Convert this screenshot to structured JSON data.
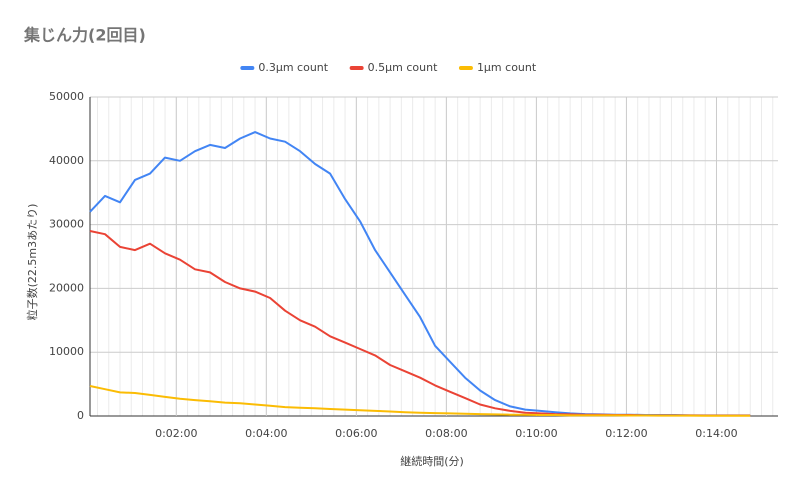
{
  "chart_data": {
    "type": "line",
    "title": "集じん力(2回目)",
    "x_label": "継続時間(分)",
    "y_label": "粒子数(22.5m3あたり)",
    "x": [
      5,
      25,
      45,
      65,
      85,
      105,
      125,
      145,
      165,
      185,
      205,
      225,
      245,
      265,
      285,
      305,
      325,
      345,
      365,
      385,
      405,
      425,
      445,
      465,
      485,
      505,
      525,
      545,
      565,
      585,
      605,
      625,
      645,
      665,
      685,
      705,
      725,
      745,
      765,
      785,
      805,
      825,
      845,
      865,
      885
    ],
    "series": [
      {
        "name": "0.3μm count",
        "color": "#4285f4",
        "values": [
          32000,
          34500,
          33500,
          37000,
          38000,
          40500,
          40000,
          41500,
          42500,
          42000,
          43500,
          44500,
          43500,
          43000,
          41500,
          39500,
          38000,
          34000,
          30500,
          26000,
          22500,
          19000,
          15500,
          11000,
          8500,
          6000,
          4000,
          2500,
          1500,
          1000,
          800,
          600,
          400,
          300,
          250,
          200,
          200,
          150,
          150,
          150,
          100,
          100,
          100,
          100,
          100
        ]
      },
      {
        "name": "0.5μm count",
        "color": "#ea4335",
        "values": [
          29000,
          28500,
          26500,
          26000,
          27000,
          25500,
          24500,
          23000,
          22500,
          21000,
          20000,
          19500,
          18500,
          16500,
          15000,
          14000,
          12500,
          11500,
          10500,
          9500,
          8000,
          7000,
          6000,
          4800,
          3800,
          2800,
          1800,
          1200,
          800,
          500,
          400,
          300,
          250,
          200,
          200,
          150,
          150,
          100,
          100,
          100,
          100,
          80,
          80,
          80,
          80
        ]
      },
      {
        "name": "1μm count",
        "color": "#fbbc04",
        "values": [
          4700,
          4200,
          3700,
          3600,
          3300,
          3000,
          2700,
          2500,
          2300,
          2100,
          2000,
          1800,
          1600,
          1400,
          1300,
          1200,
          1100,
          1000,
          900,
          800,
          700,
          600,
          500,
          450,
          400,
          350,
          300,
          250,
          200,
          200,
          150,
          150,
          100,
          100,
          100,
          100,
          80,
          80,
          60,
          60,
          60,
          50,
          50,
          50,
          50
        ]
      }
    ],
    "xlim": [
      5,
      922
    ],
    "xticks": [
      {
        "value": 120,
        "label": "0:02:00"
      },
      {
        "value": 240,
        "label": "0:04:00"
      },
      {
        "value": 360,
        "label": "0:06:00"
      },
      {
        "value": 480,
        "label": "0:08:00"
      },
      {
        "value": 600,
        "label": "0:10:00"
      },
      {
        "value": 720,
        "label": "0:12:00"
      },
      {
        "value": 840,
        "label": "0:14:00"
      }
    ],
    "ylim": [
      0,
      50000
    ],
    "yticks": [
      0,
      10000,
      20000,
      30000,
      40000,
      50000
    ],
    "grid": true,
    "legend": "top"
  }
}
